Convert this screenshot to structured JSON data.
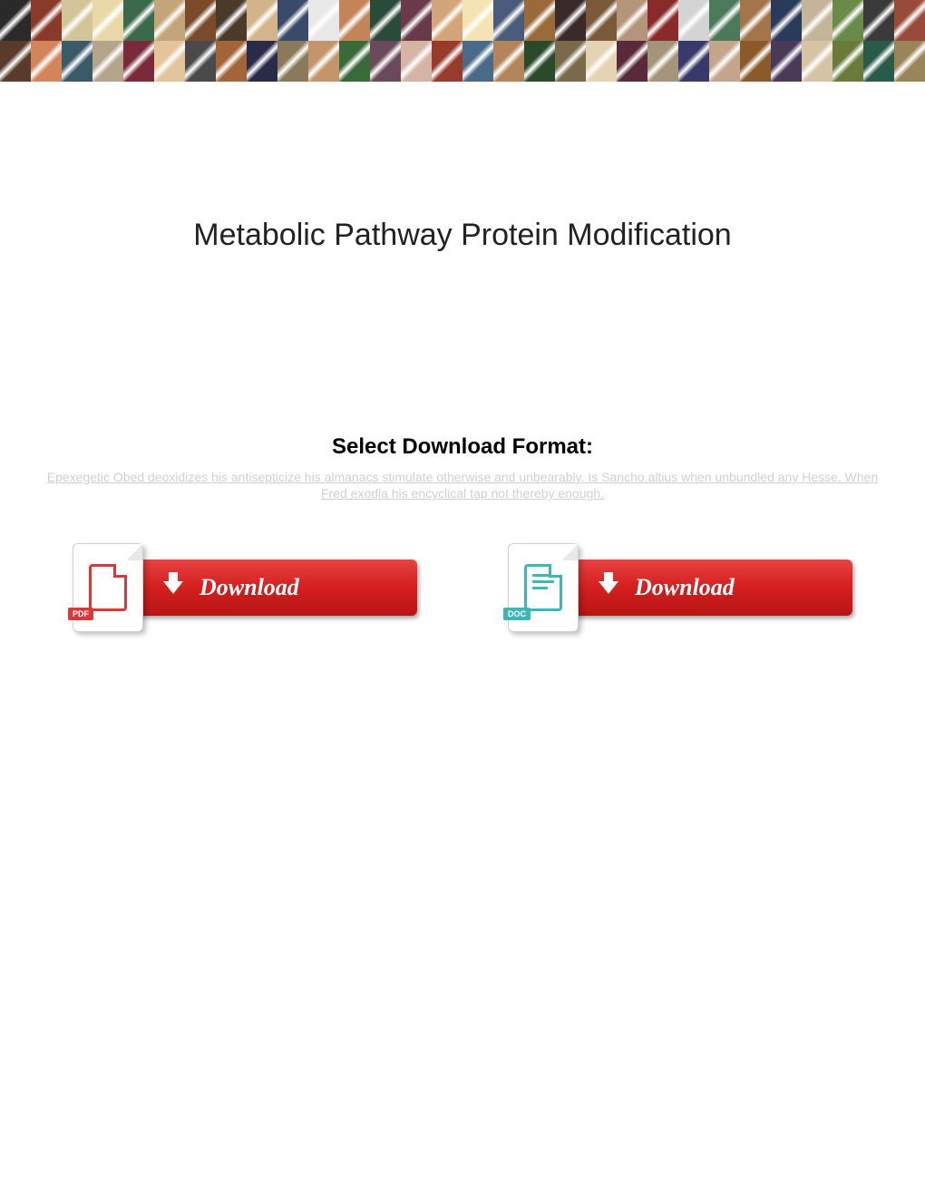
{
  "banner": {
    "rows": 2,
    "cols": 30,
    "tile_colors": [
      "#2a2a2a",
      "#8a3a2a",
      "#d4c49a",
      "#e8d8a8",
      "#3a6a4a",
      "#c4a47a",
      "#7a4a2a",
      "#4a3a2a",
      "#d4b48a",
      "#3a4a6a",
      "#e8e8e8",
      "#c4845a",
      "#2a4a3a",
      "#6a3a4a",
      "#d4a47a",
      "#f4e4b4",
      "#4a5a7a",
      "#9a6a3a",
      "#3a2a2a",
      "#7a5a3a",
      "#b4947a",
      "#8a2a2a",
      "#d4d4d4",
      "#4a7a5a",
      "#a4744a",
      "#2a3a5a",
      "#c4b49a",
      "#6a8a4a",
      "#3a3a3a",
      "#9a4a3a",
      "#5a3a2a",
      "#d4845a",
      "#3a5a6a",
      "#b4a48a",
      "#7a2a3a",
      "#e4c49a",
      "#4a4a4a",
      "#a4643a",
      "#2a2a4a",
      "#8a7a5a",
      "#c4946a",
      "#3a6a3a",
      "#6a4a5a",
      "#d4b4a4",
      "#9a3a2a",
      "#4a6a8a",
      "#b4845a",
      "#2a4a2a",
      "#7a6a4a",
      "#e4d4b4",
      "#5a2a3a",
      "#a4947a",
      "#3a3a6a",
      "#c4a48a",
      "#8a5a2a",
      "#4a3a5a",
      "#d4c4a4",
      "#6a7a3a",
      "#2a5a4a",
      "#9a845a"
    ]
  },
  "page": {
    "title": "Metabolic Pathway Protein Modification",
    "download_heading": "Select Download Format:",
    "watermark": "Epexegetic Obed deoxidizes his antisepticize his almanacs stimulate otherwise and unbearably. Is Sancho altius when unbundled any Hesse. When Fred exodia his encyclical tap not thereby enough."
  },
  "buttons": {
    "pdf": {
      "label": "Download",
      "badge": "PDF"
    },
    "doc": {
      "label": "Download",
      "badge": "DOC"
    }
  },
  "colors": {
    "pdf_accent": "#d93838",
    "doc_accent": "#3bb8b3",
    "button_gradient_top": "#e74242",
    "button_gradient_bottom": "#b81414",
    "text_primary": "#222222",
    "watermark": "#d0d0d0",
    "background": "#ffffff"
  }
}
